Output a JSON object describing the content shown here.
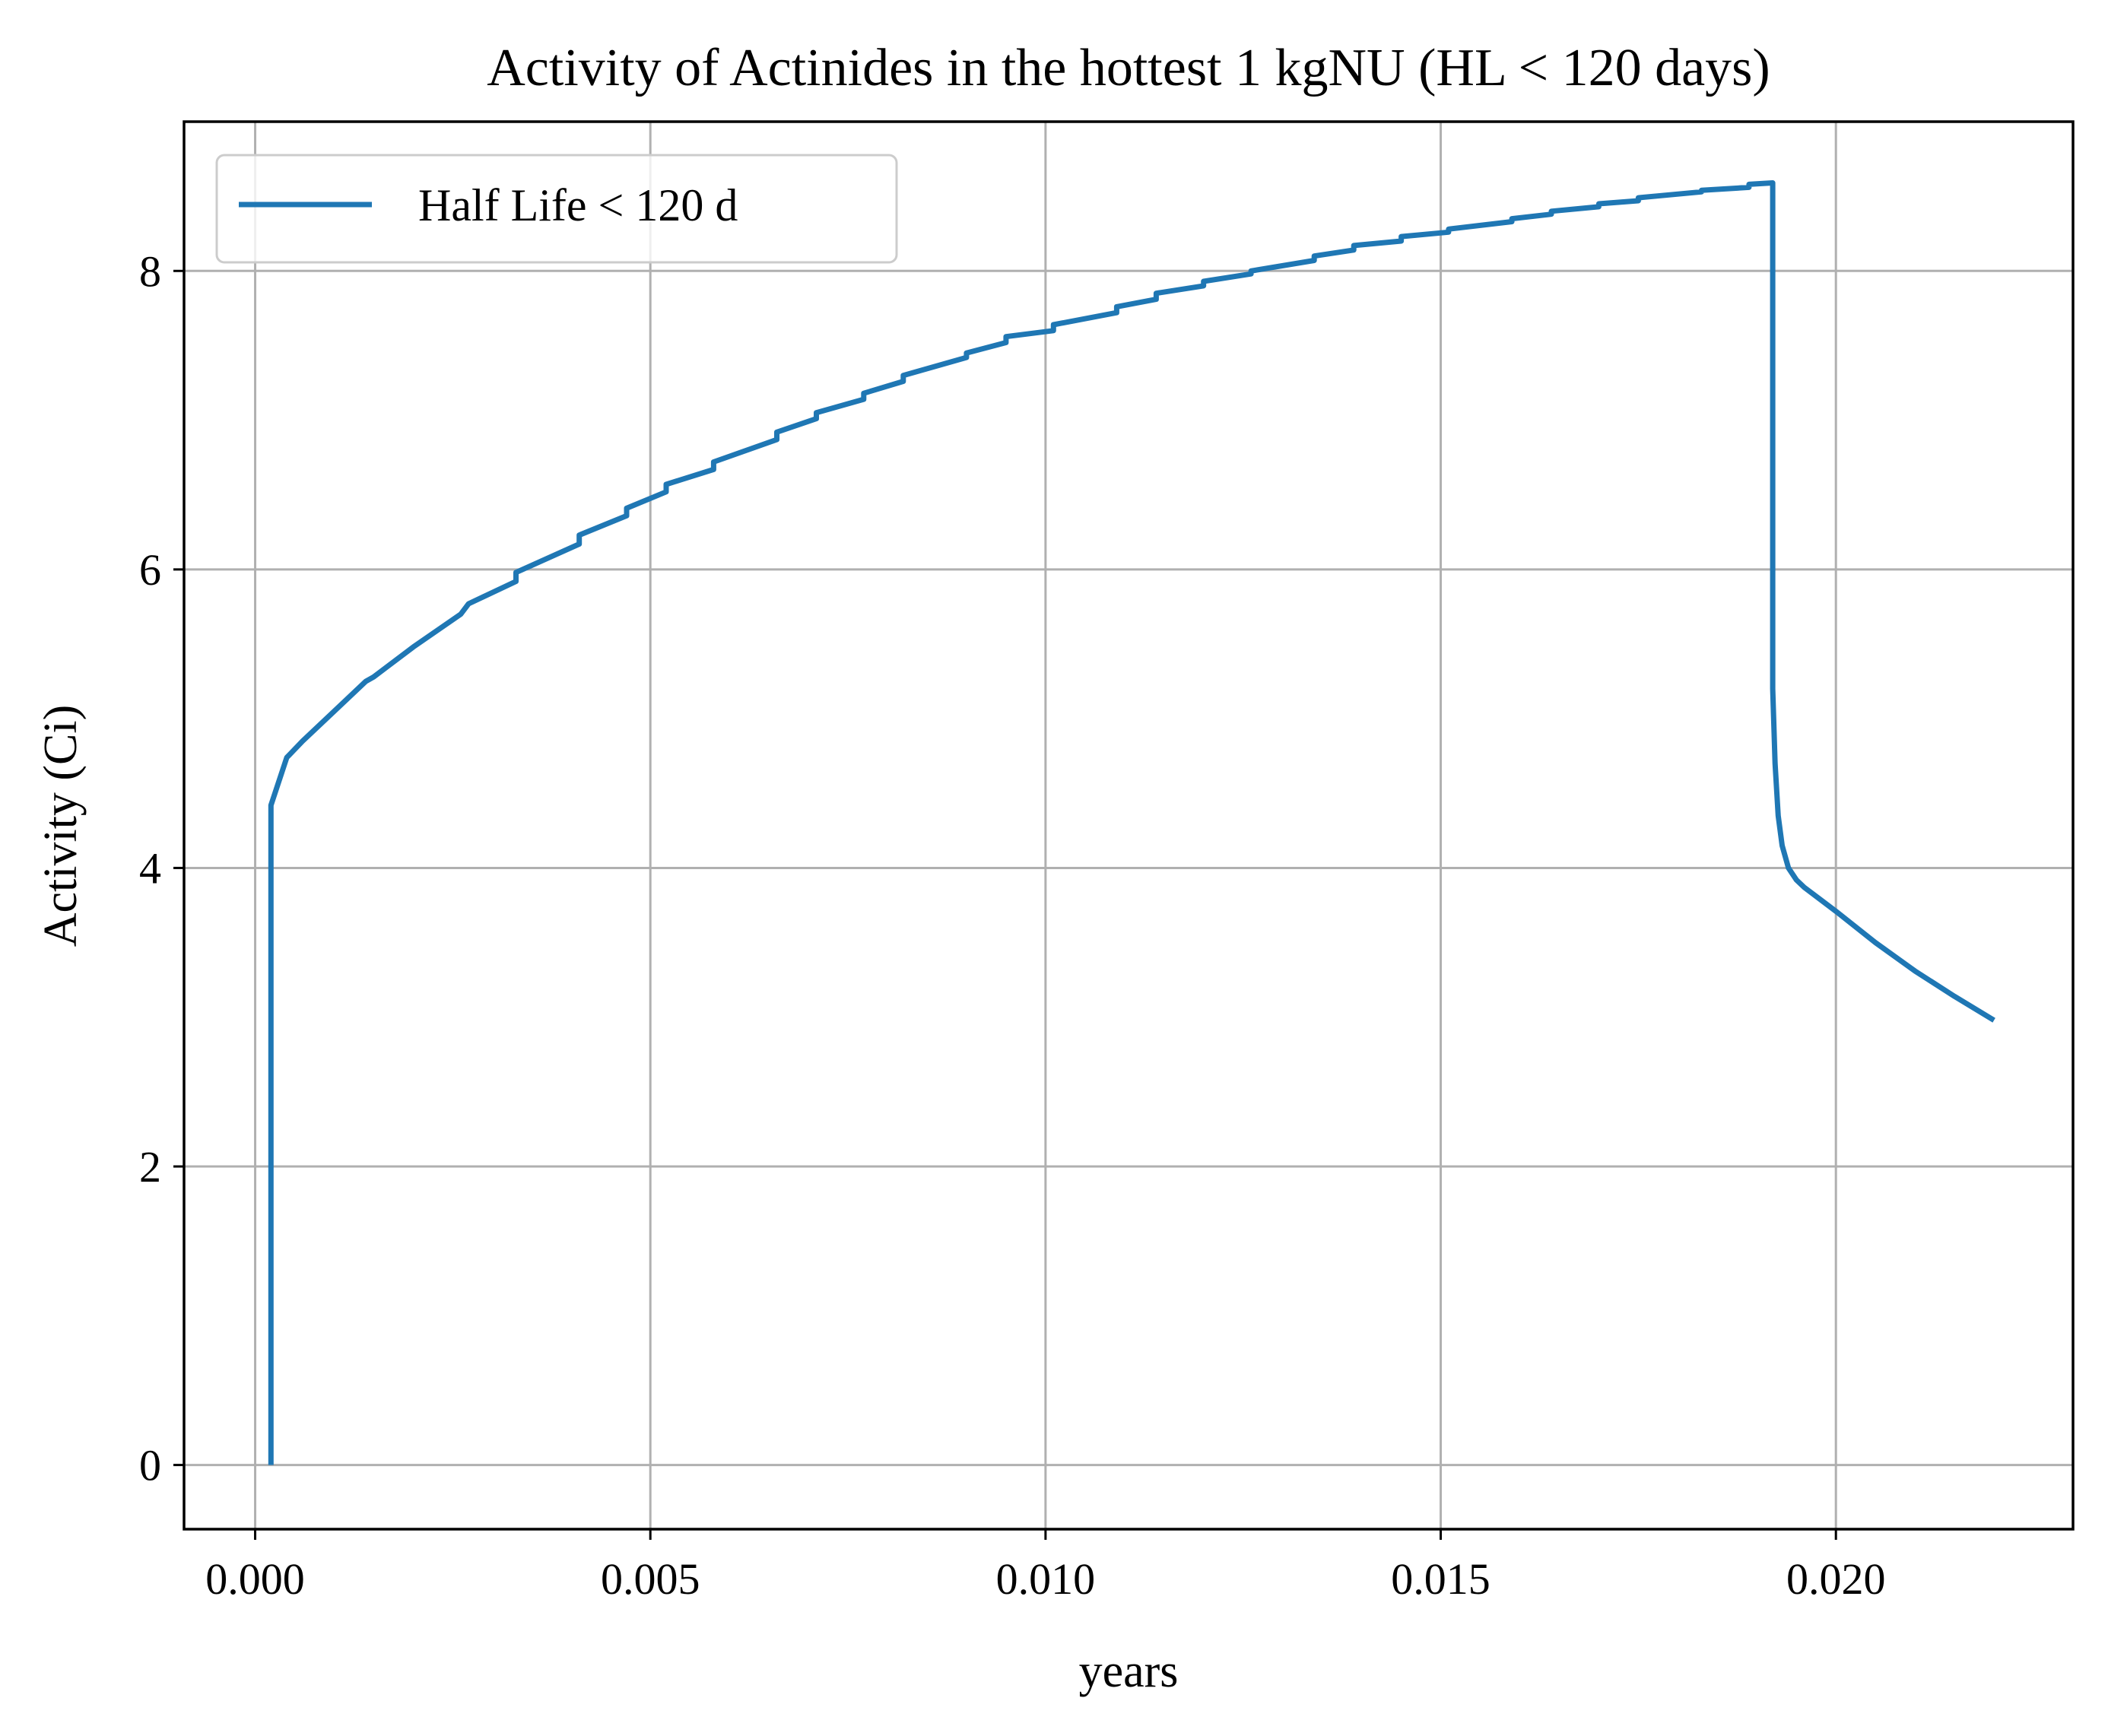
{
  "chart_data": {
    "type": "line",
    "title": "Activity of Actinides in the hottest 1 kgNU (HL < 120 days)",
    "xlabel": "years",
    "ylabel": "Activity (Ci)",
    "xlim": [
      -0.0009,
      0.023
    ],
    "ylim": [
      -0.43,
      9.0
    ],
    "xticks": [
      0.0,
      0.005,
      0.01,
      0.015,
      0.02
    ],
    "xtick_labels": [
      "0.000",
      "0.005",
      "0.010",
      "0.015",
      "0.020"
    ],
    "yticks": [
      0,
      2,
      4,
      6,
      8
    ],
    "ytick_labels": [
      "0",
      "2",
      "4",
      "6",
      "8"
    ],
    "grid": true,
    "legend_position": "upper-left",
    "series": [
      {
        "name": "Half Life < 120 d",
        "color": "#1f77b4",
        "x": [
          0.0002,
          0.0002,
          0.0004,
          0.0006,
          0.001,
          0.0014,
          0.0015,
          0.002,
          0.0026,
          0.0027,
          0.0033,
          0.0033,
          0.0041,
          0.0041,
          0.0047,
          0.0047,
          0.0052,
          0.0052,
          0.0058,
          0.0058,
          0.0066,
          0.0066,
          0.0071,
          0.0071,
          0.0077,
          0.0077,
          0.0082,
          0.0082,
          0.009,
          0.009,
          0.0095,
          0.0095,
          0.0101,
          0.0101,
          0.0109,
          0.0109,
          0.0114,
          0.0114,
          0.012,
          0.012,
          0.0126,
          0.0126,
          0.0134,
          0.0134,
          0.0139,
          0.0139,
          0.0145,
          0.0145,
          0.0151,
          0.0151,
          0.0159,
          0.0159,
          0.0164,
          0.0164,
          0.017,
          0.017,
          0.0175,
          0.0175,
          0.0183,
          0.0183,
          0.0189,
          0.0189,
          0.0192,
          0.0192,
          0.0192,
          0.0192,
          0.01923,
          0.01927,
          0.01932,
          0.0194,
          0.0195,
          0.0196,
          0.0198,
          0.02,
          0.0205,
          0.021,
          0.0215,
          0.022
        ],
        "y": [
          0.0,
          4.42,
          4.74,
          4.85,
          5.05,
          5.25,
          5.28,
          5.48,
          5.7,
          5.77,
          5.92,
          5.98,
          6.17,
          6.23,
          6.36,
          6.41,
          6.52,
          6.57,
          6.67,
          6.72,
          6.87,
          6.92,
          7.01,
          7.05,
          7.14,
          7.18,
          7.26,
          7.3,
          7.42,
          7.45,
          7.52,
          7.56,
          7.6,
          7.64,
          7.72,
          7.76,
          7.81,
          7.85,
          7.9,
          7.93,
          7.98,
          8.0,
          8.07,
          8.1,
          8.14,
          8.17,
          8.2,
          8.23,
          8.26,
          8.28,
          8.33,
          8.35,
          8.38,
          8.4,
          8.43,
          8.45,
          8.47,
          8.49,
          8.53,
          8.54,
          8.56,
          8.58,
          8.59,
          7.0,
          6.0,
          5.2,
          4.7,
          4.35,
          4.15,
          4.0,
          3.92,
          3.87,
          3.79,
          3.71,
          3.5,
          3.31,
          3.14,
          2.98
        ]
      }
    ]
  }
}
